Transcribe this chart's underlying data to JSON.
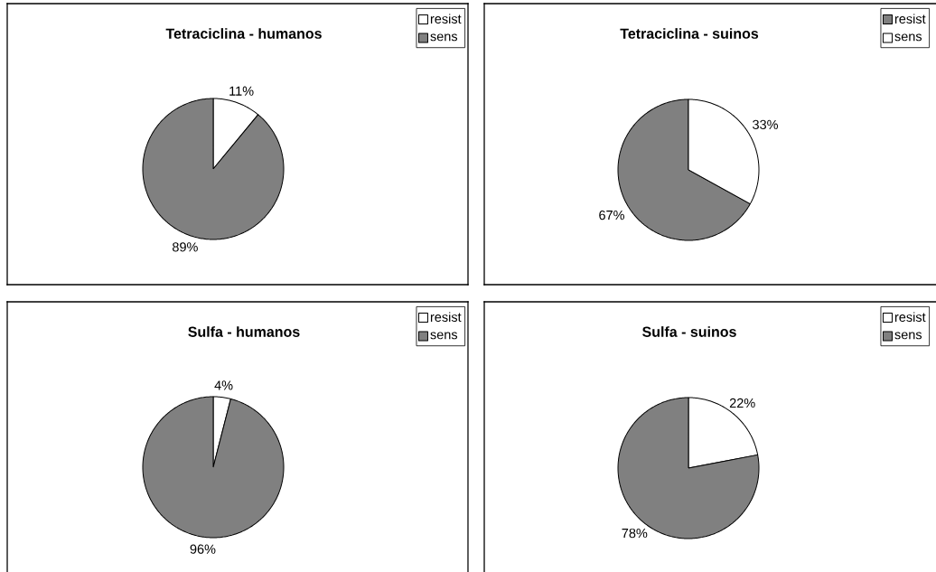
{
  "chart_data": [
    {
      "type": "pie",
      "title": "Tetraciclina - humanos",
      "categories": [
        "resist",
        "sens"
      ],
      "values": [
        11,
        89
      ],
      "colors": [
        "#ffffff",
        "#808080"
      ],
      "value_labels": [
        "11%",
        "89%"
      ],
      "legend": "top right"
    },
    {
      "type": "pie",
      "title": "Tetraciclina - suinos",
      "categories": [
        "resist",
        "sens"
      ],
      "values": [
        67,
        33
      ],
      "colors": [
        "#808080",
        "#ffffff"
      ],
      "value_labels": [
        "67%",
        "33%"
      ],
      "legend": "top right"
    },
    {
      "type": "pie",
      "title": "Sulfa - humanos",
      "categories": [
        "resist",
        "sens"
      ],
      "values": [
        4,
        96
      ],
      "colors": [
        "#ffffff",
        "#808080"
      ],
      "value_labels": [
        "4%",
        "96%"
      ],
      "legend": "top right"
    },
    {
      "type": "pie",
      "title": "Sulfa - suinos",
      "categories": [
        "resist",
        "sens"
      ],
      "values": [
        22,
        78
      ],
      "colors": [
        "#ffffff",
        "#808080"
      ],
      "value_labels": [
        "22%",
        "78%"
      ],
      "legend": "top right"
    }
  ]
}
